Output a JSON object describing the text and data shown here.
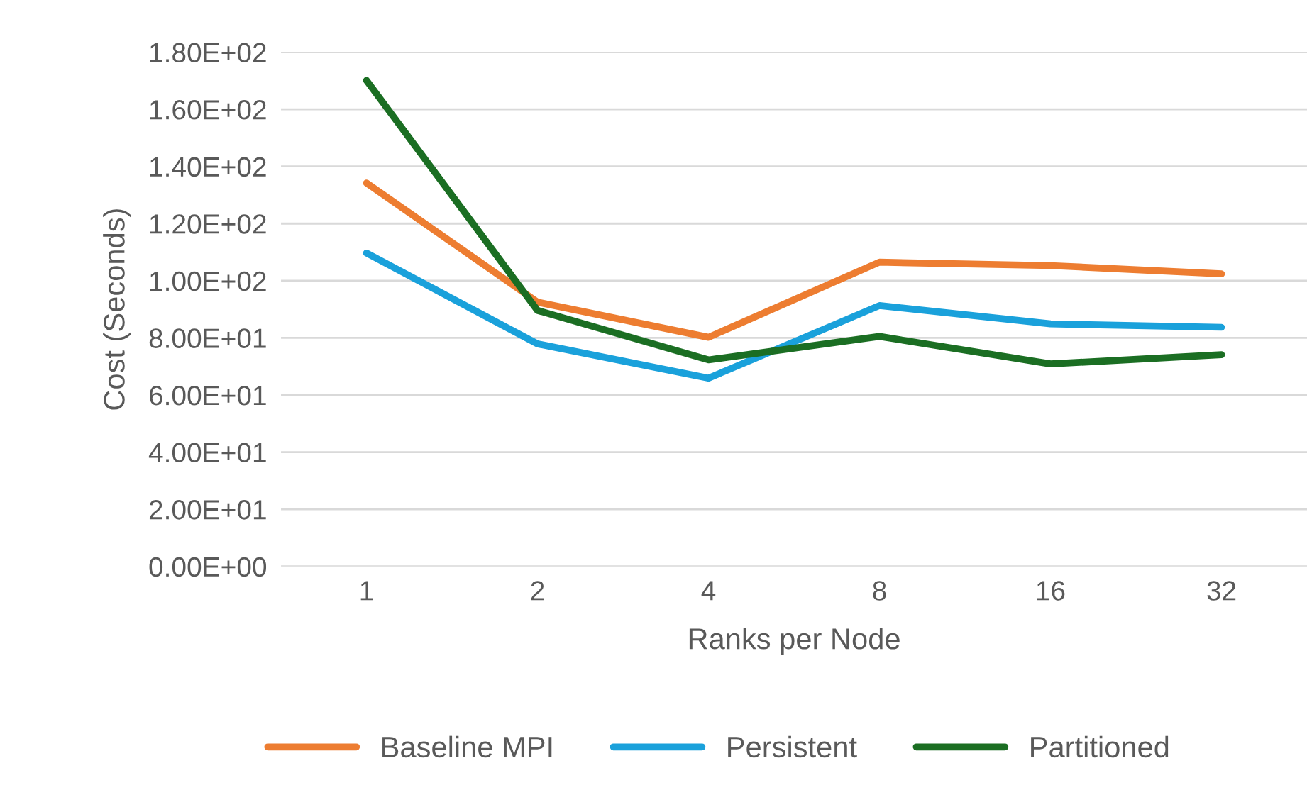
{
  "chart_data": {
    "type": "line",
    "xlabel": "Ranks per Node",
    "ylabel": "Cost (Seconds)",
    "categories": [
      "1",
      "2",
      "4",
      "8",
      "16",
      "32"
    ],
    "series": [
      {
        "name": "Baseline MPI",
        "color": "#ed7d31",
        "values": [
          134.2,
          92.5,
          80.2,
          106.5,
          105.3,
          102.4
        ]
      },
      {
        "name": "Persistent",
        "color": "#1aa1db",
        "values": [
          109.7,
          77.9,
          65.9,
          91.3,
          84.9,
          83.7
        ]
      },
      {
        "name": "Partitioned",
        "color": "#1b6e23",
        "values": [
          170.1,
          89.6,
          72.3,
          80.5,
          70.9,
          74.1
        ]
      }
    ],
    "ylim": [
      0,
      180
    ],
    "yticks": [
      {
        "value": 0,
        "label": "0.00E+00"
      },
      {
        "value": 20,
        "label": "2.00E+01"
      },
      {
        "value": 40,
        "label": "4.00E+01"
      },
      {
        "value": 60,
        "label": "6.00E+01"
      },
      {
        "value": 80,
        "label": "8.00E+01"
      },
      {
        "value": 100,
        "label": "1.00E+02"
      },
      {
        "value": 120,
        "label": "1.20E+02"
      },
      {
        "value": 140,
        "label": "1.40E+02"
      },
      {
        "value": 160,
        "label": "1.60E+02"
      },
      {
        "value": 180,
        "label": "1.80E+02"
      }
    ],
    "grid": "y",
    "legend": "bottom",
    "marker": "none",
    "line_style": "solid"
  }
}
